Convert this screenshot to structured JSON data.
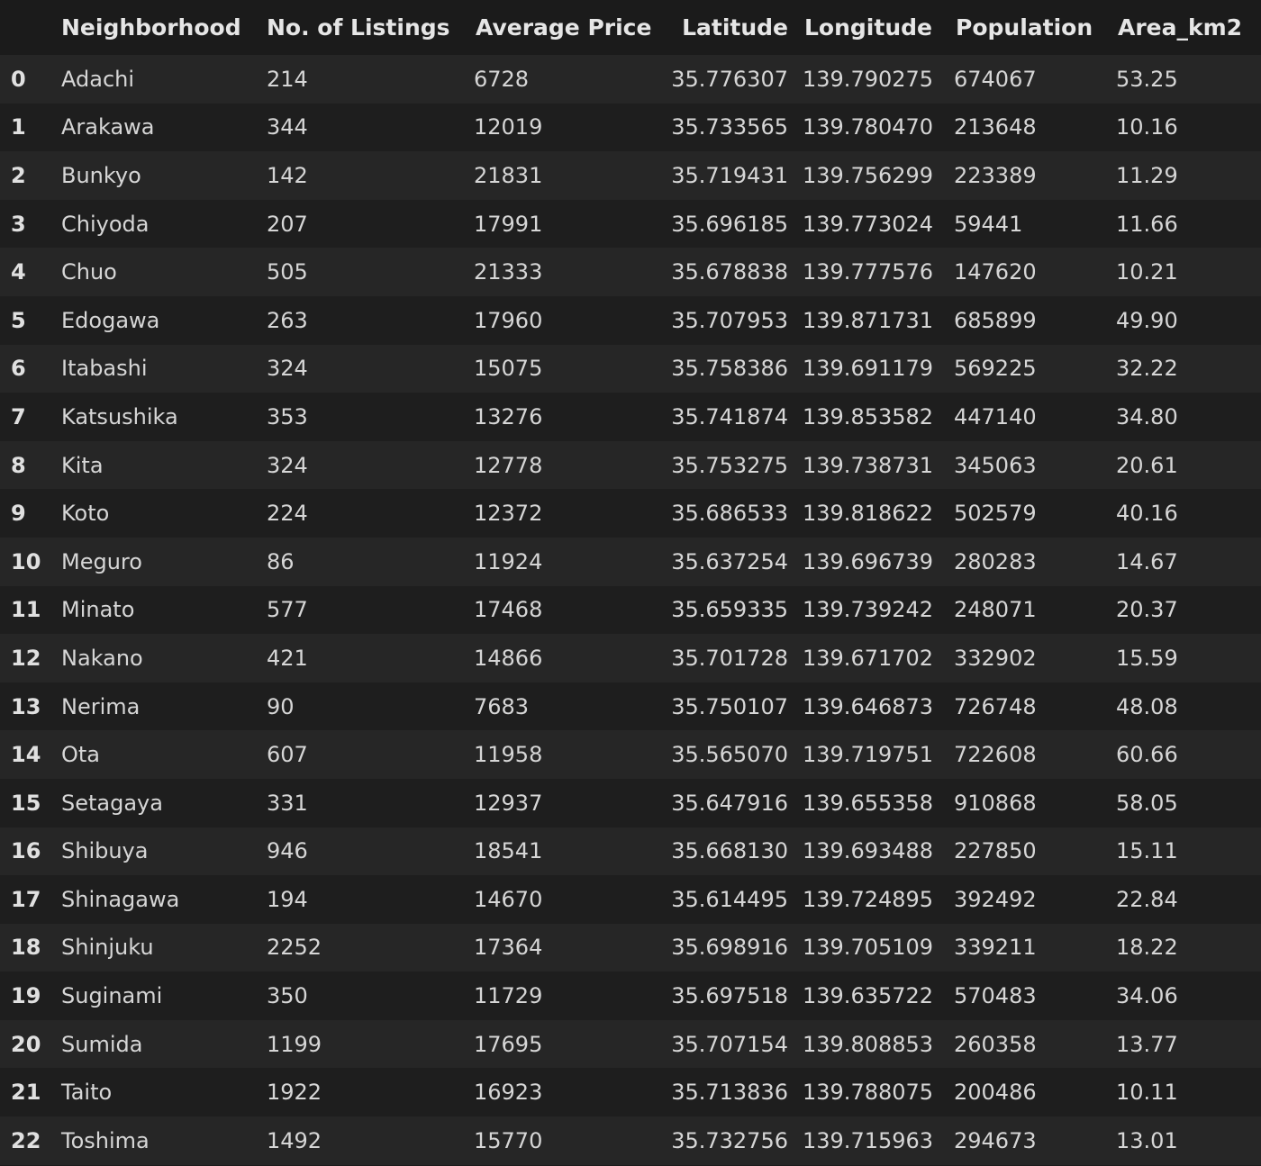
{
  "table": {
    "columns": [
      "",
      "Neighborhood",
      "No. of Listings",
      "Average Price",
      "Latitude",
      "Longitude",
      "Population",
      "Area_km2"
    ],
    "rows": [
      [
        "0",
        "Adachi",
        "214",
        "6728",
        "35.776307",
        "139.790275",
        "674067",
        "53.25"
      ],
      [
        "1",
        "Arakawa",
        "344",
        "12019",
        "35.733565",
        "139.780470",
        "213648",
        "10.16"
      ],
      [
        "2",
        "Bunkyo",
        "142",
        "21831",
        "35.719431",
        "139.756299",
        "223389",
        "11.29"
      ],
      [
        "3",
        "Chiyoda",
        "207",
        "17991",
        "35.696185",
        "139.773024",
        "59441",
        "11.66"
      ],
      [
        "4",
        "Chuo",
        "505",
        "21333",
        "35.678838",
        "139.777576",
        "147620",
        "10.21"
      ],
      [
        "5",
        "Edogawa",
        "263",
        "17960",
        "35.707953",
        "139.871731",
        "685899",
        "49.90"
      ],
      [
        "6",
        "Itabashi",
        "324",
        "15075",
        "35.758386",
        "139.691179",
        "569225",
        "32.22"
      ],
      [
        "7",
        "Katsushika",
        "353",
        "13276",
        "35.741874",
        "139.853582",
        "447140",
        "34.80"
      ],
      [
        "8",
        "Kita",
        "324",
        "12778",
        "35.753275",
        "139.738731",
        "345063",
        "20.61"
      ],
      [
        "9",
        "Koto",
        "224",
        "12372",
        "35.686533",
        "139.818622",
        "502579",
        "40.16"
      ],
      [
        "10",
        "Meguro",
        "86",
        "11924",
        "35.637254",
        "139.696739",
        "280283",
        "14.67"
      ],
      [
        "11",
        "Minato",
        "577",
        "17468",
        "35.659335",
        "139.739242",
        "248071",
        "20.37"
      ],
      [
        "12",
        "Nakano",
        "421",
        "14866",
        "35.701728",
        "139.671702",
        "332902",
        "15.59"
      ],
      [
        "13",
        "Nerima",
        "90",
        "7683",
        "35.750107",
        "139.646873",
        "726748",
        "48.08"
      ],
      [
        "14",
        "Ota",
        "607",
        "11958",
        "35.565070",
        "139.719751",
        "722608",
        "60.66"
      ],
      [
        "15",
        "Setagaya",
        "331",
        "12937",
        "35.647916",
        "139.655358",
        "910868",
        "58.05"
      ],
      [
        "16",
        "Shibuya",
        "946",
        "18541",
        "35.668130",
        "139.693488",
        "227850",
        "15.11"
      ],
      [
        "17",
        "Shinagawa",
        "194",
        "14670",
        "35.614495",
        "139.724895",
        "392492",
        "22.84"
      ],
      [
        "18",
        "Shinjuku",
        "2252",
        "17364",
        "35.698916",
        "139.705109",
        "339211",
        "18.22"
      ],
      [
        "19",
        "Suginami",
        "350",
        "11729",
        "35.697518",
        "139.635722",
        "570483",
        "34.06"
      ],
      [
        "20",
        "Sumida",
        "1199",
        "17695",
        "35.707154",
        "139.808853",
        "260358",
        "13.77"
      ],
      [
        "21",
        "Taito",
        "1922",
        "16923",
        "35.713836",
        "139.788075",
        "200486",
        "10.11"
      ],
      [
        "22",
        "Toshima",
        "1492",
        "15770",
        "35.732756",
        "139.715963",
        "294673",
        "13.01"
      ]
    ]
  }
}
